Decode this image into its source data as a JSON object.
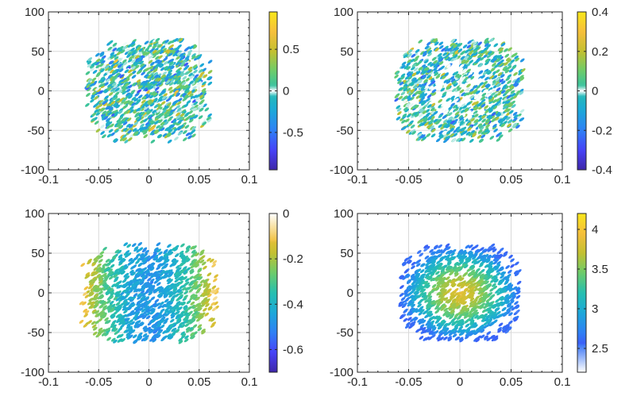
{
  "chart_data": [
    {
      "type": "scatter",
      "name": "top-left",
      "title": "",
      "xlabel": "",
      "ylabel": "",
      "xlim": [
        -0.1,
        0.1
      ],
      "ylim": [
        -100,
        100
      ],
      "xticks": [
        "-0.1",
        "-0.05",
        "0",
        "0.05",
        "0.1"
      ],
      "yticks": [
        "100",
        "50",
        "0",
        "-50",
        "-100"
      ],
      "grid": true,
      "colormap": "parula-white-center",
      "clim": [
        -0.95,
        0.95
      ],
      "colorbar_ticks": [
        {
          "label": "0.5",
          "value": 0.5
        },
        {
          "label": "0",
          "value": 0
        },
        {
          "label": "-0.5",
          "value": -0.5
        }
      ],
      "cloud": {
        "x_halfwidth": 0.062,
        "y_halfwidth": 65,
        "pattern": "signed-random",
        "value_scale": 0.9,
        "center_value": 0
      }
    },
    {
      "type": "scatter",
      "name": "top-right",
      "title": "",
      "xlabel": "",
      "ylabel": "",
      "xlim": [
        -0.1,
        0.1
      ],
      "ylim": [
        -100,
        100
      ],
      "xticks": [
        "-0.1",
        "-0.05",
        "0",
        "0.05",
        "0.1"
      ],
      "yticks": [
        "100",
        "50",
        "0",
        "-50",
        "-100"
      ],
      "grid": true,
      "colormap": "parula-white-center",
      "clim": [
        -0.4,
        0.4
      ],
      "colorbar_ticks": [
        {
          "label": "0.4",
          "value": 0.4
        },
        {
          "label": "0.2",
          "value": 0.2
        },
        {
          "label": "0",
          "value": 0
        },
        {
          "label": "-0.2",
          "value": -0.2
        },
        {
          "label": "-0.4",
          "value": -0.4
        }
      ],
      "cloud": {
        "x_halfwidth": 0.062,
        "y_halfwidth": 65,
        "pattern": "signed-random-sparse-center",
        "value_scale": 0.32,
        "center_value": 0
      }
    },
    {
      "type": "scatter",
      "name": "bottom-left",
      "title": "",
      "xlabel": "",
      "ylabel": "",
      "xlim": [
        -0.1,
        0.1
      ],
      "ylim": [
        -100,
        100
      ],
      "xticks": [
        "-0.1",
        "-0.05",
        "0",
        "0.05",
        "0.1"
      ],
      "yticks": [
        "100",
        "50",
        "0",
        "-50",
        "-100"
      ],
      "grid": true,
      "colormap": "parula-white-top",
      "clim": [
        -0.7,
        0
      ],
      "colorbar_ticks": [
        {
          "label": "0",
          "value": 0
        },
        {
          "label": "-0.2",
          "value": -0.2
        },
        {
          "label": "-0.4",
          "value": -0.4
        },
        {
          "label": "-0.6",
          "value": -0.6
        }
      ],
      "cloud": {
        "x_halfwidth": 0.068,
        "y_halfwidth": 62,
        "pattern": "radial-rising-outward",
        "center_value": -0.48,
        "edge_value": -0.12
      }
    },
    {
      "type": "scatter",
      "name": "bottom-right",
      "title": "",
      "xlabel": "",
      "ylabel": "",
      "xlim": [
        -0.1,
        0.1
      ],
      "ylim": [
        -100,
        100
      ],
      "xticks": [
        "-0.1",
        "-0.05",
        "0",
        "0.05",
        "0.1"
      ],
      "yticks": [
        "100",
        "50",
        "0",
        "-50",
        "-100"
      ],
      "grid": true,
      "colormap": "parula-white-bottom",
      "clim": [
        2.2,
        4.2
      ],
      "colorbar_ticks": [
        {
          "label": "4",
          "value": 4
        },
        {
          "label": "3.5",
          "value": 3.5
        },
        {
          "label": "3",
          "value": 3
        },
        {
          "label": "2.5",
          "value": 2.5
        }
      ],
      "cloud": {
        "x_halfwidth": 0.058,
        "y_halfwidth": 60,
        "pattern": "radial-falling-outward",
        "center_value": 3.85,
        "edge_value": 2.6
      }
    }
  ],
  "colors": {
    "parula": [
      "#3e26a8",
      "#4743f8",
      "#2f80f5",
      "#1ca8d9",
      "#26bfb0",
      "#6ccc6b",
      "#c3c031",
      "#f6bf3c",
      "#f9e71a"
    ],
    "grid": "#d9d9d9",
    "axis": "#262626"
  }
}
